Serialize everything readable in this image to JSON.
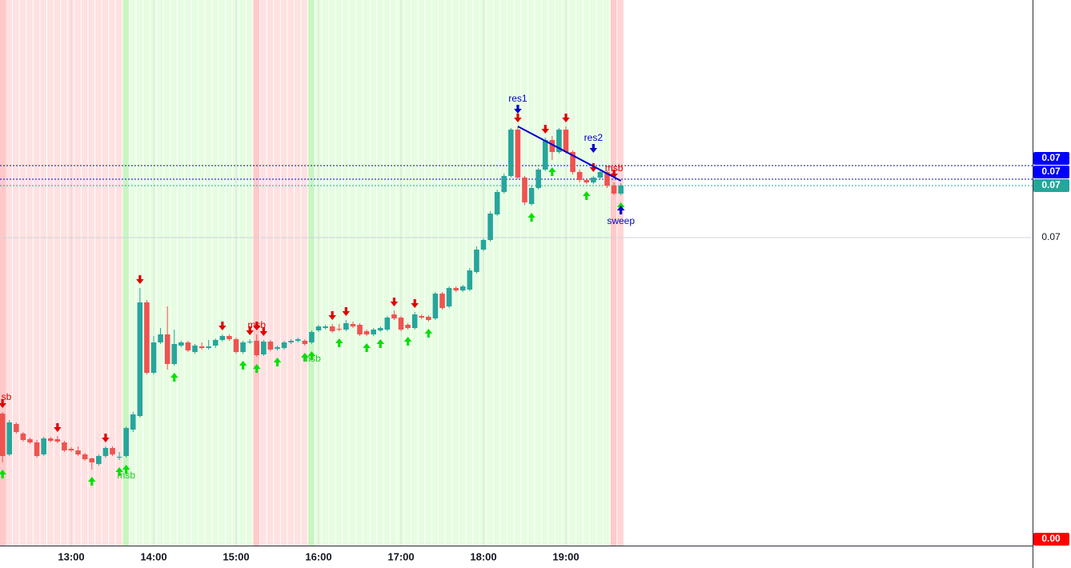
{
  "chart_data": {
    "type": "candlestick",
    "x": [
      "12:10",
      "12:15",
      "12:20",
      "12:25",
      "12:30",
      "12:35",
      "12:40",
      "12:45",
      "12:50",
      "12:55",
      "13:00",
      "13:05",
      "13:10",
      "13:15",
      "13:20",
      "13:25",
      "13:30",
      "13:35",
      "13:40",
      "13:45",
      "13:50",
      "13:55",
      "14:00",
      "14:05",
      "14:10",
      "14:15",
      "14:20",
      "14:25",
      "14:30",
      "14:35",
      "14:40",
      "14:45",
      "14:50",
      "14:55",
      "15:00",
      "15:05",
      "15:10",
      "15:15",
      "15:20",
      "15:25",
      "15:30",
      "15:35",
      "15:40",
      "15:45",
      "15:50",
      "15:55",
      "16:00",
      "16:05",
      "16:10",
      "16:15",
      "16:20",
      "16:25",
      "16:30",
      "16:35",
      "16:40",
      "16:45",
      "16:50",
      "16:55",
      "17:00",
      "17:05",
      "17:10",
      "17:15",
      "17:20",
      "17:25",
      "17:30",
      "17:35",
      "17:40",
      "17:45",
      "17:50",
      "17:55",
      "18:00",
      "18:05",
      "18:10",
      "18:15",
      "18:20",
      "18:25",
      "18:30",
      "18:35",
      "18:40",
      "18:45",
      "18:50",
      "18:55",
      "19:00",
      "19:05",
      "19:10",
      "19:15",
      "19:20",
      "19:25",
      "19:30",
      "19:35",
      "19:40"
    ],
    "open": [
      0.0678,
      0.06729,
      0.06767,
      0.06755,
      0.06748,
      0.06744,
      0.06729,
      0.06749,
      0.06748,
      0.06744,
      0.06736,
      0.06734,
      0.06729,
      0.06724,
      0.06717,
      0.06727,
      0.06737,
      0.06725,
      0.06727,
      0.0676,
      0.06777,
      0.06919,
      0.06831,
      0.06869,
      0.06879,
      0.06842,
      0.06865,
      0.06869,
      0.06857,
      0.06864,
      0.06862,
      0.06865,
      0.06872,
      0.06877,
      0.06873,
      0.06857,
      0.06869,
      0.06871,
      0.06854,
      0.0687,
      0.06861,
      0.06862,
      0.06869,
      0.06871,
      0.06871,
      0.06869,
      0.06884,
      0.06887,
      0.06889,
      0.06886,
      0.06885,
      0.06892,
      0.06891,
      0.06883,
      0.06879,
      0.06884,
      0.06885,
      0.06904,
      0.069,
      0.06891,
      0.06887,
      0.06902,
      0.06901,
      0.06899,
      0.0693,
      0.06914,
      0.06937,
      0.06934,
      0.06935,
      0.06957,
      0.06985,
      0.06997,
      0.07029,
      0.07057,
      0.07077,
      0.07135,
      0.07075,
      0.07042,
      0.07062,
      0.07085,
      0.07122,
      0.07107,
      0.07135,
      0.07107,
      0.07082,
      0.07072,
      0.07069,
      0.07075,
      0.07082,
      0.07065,
      0.07055
    ],
    "high": [
      0.06782,
      0.06772,
      0.06769,
      0.06757,
      0.0675,
      0.06747,
      0.06751,
      0.06751,
      0.06752,
      0.06746,
      0.06738,
      0.06739,
      0.06731,
      0.06725,
      0.06729,
      0.06739,
      0.06739,
      0.06732,
      0.06764,
      0.06782,
      0.06937,
      0.06922,
      0.06877,
      0.06887,
      0.06914,
      0.06885,
      0.06871,
      0.06871,
      0.06867,
      0.06869,
      0.06872,
      0.06874,
      0.06879,
      0.06879,
      0.06875,
      0.06871,
      0.06873,
      0.06879,
      0.06872,
      0.06872,
      0.06865,
      0.06871,
      0.06873,
      0.06875,
      0.06873,
      0.06884,
      0.06891,
      0.06891,
      0.06892,
      0.06892,
      0.06897,
      0.06895,
      0.06893,
      0.06885,
      0.06887,
      0.06889,
      0.06902,
      0.06909,
      0.06902,
      0.06893,
      0.06907,
      0.06904,
      0.06903,
      0.06932,
      0.06932,
      0.06939,
      0.06939,
      0.06941,
      0.06962,
      0.06989,
      0.06999,
      0.07033,
      0.0706,
      0.0708,
      0.07137,
      0.07139,
      0.07077,
      0.07065,
      0.07087,
      0.07125,
      0.07127,
      0.07137,
      0.07139,
      0.07109,
      0.07085,
      0.07074,
      0.07077,
      0.07084,
      0.07084,
      0.07069,
      0.07068
    ],
    "low": [
      0.06719,
      0.06727,
      0.06755,
      0.06745,
      0.06742,
      0.06725,
      0.06727,
      0.06744,
      0.06743,
      0.06732,
      0.06732,
      0.06727,
      0.06721,
      0.0671,
      0.06715,
      0.06725,
      0.06727,
      0.06722,
      0.06725,
      0.06757,
      0.06775,
      0.06829,
      0.06829,
      0.06867,
      0.06835,
      0.0684,
      0.06863,
      0.06857,
      0.06855,
      0.0686,
      0.0686,
      0.06862,
      0.0687,
      0.06871,
      0.06855,
      0.06855,
      0.06867,
      0.06851,
      0.06852,
      0.06858,
      0.06859,
      0.0686,
      0.06867,
      0.06869,
      0.06865,
      0.06867,
      0.06882,
      0.06885,
      0.06881,
      0.06883,
      0.06883,
      0.06887,
      0.06877,
      0.06877,
      0.06877,
      0.06882,
      0.06883,
      0.06897,
      0.06883,
      0.06885,
      0.06885,
      0.06898,
      0.06895,
      0.06897,
      0.0691,
      0.06912,
      0.06932,
      0.06932,
      0.06933,
      0.06955,
      0.06983,
      0.06995,
      0.07027,
      0.07055,
      0.07075,
      0.07073,
      0.07041,
      0.0704,
      0.0706,
      0.07083,
      0.07097,
      0.07105,
      0.07105,
      0.07079,
      0.07069,
      0.07067,
      0.07067,
      0.07073,
      0.07062,
      0.07053,
      0.07053
    ],
    "close": [
      0.06727,
      0.06769,
      0.06757,
      0.06747,
      0.06744,
      0.06727,
      0.06749,
      0.06746,
      0.06745,
      0.06734,
      0.06734,
      0.06729,
      0.06723,
      0.06719,
      0.06727,
      0.06737,
      0.06729,
      0.06726,
      0.06762,
      0.06779,
      0.06919,
      0.06831,
      0.06869,
      0.06879,
      0.06842,
      0.06867,
      0.06869,
      0.06859,
      0.06865,
      0.06862,
      0.06864,
      0.06872,
      0.06877,
      0.06873,
      0.06857,
      0.06869,
      0.0687,
      0.06853,
      0.0687,
      0.0686,
      0.06863,
      0.06869,
      0.06871,
      0.06873,
      0.06867,
      0.06882,
      0.06889,
      0.06889,
      0.06883,
      0.06885,
      0.06893,
      0.06889,
      0.06879,
      0.06879,
      0.06885,
      0.06887,
      0.069,
      0.06899,
      0.06885,
      0.06887,
      0.06904,
      0.069,
      0.06897,
      0.0693,
      0.06912,
      0.06937,
      0.06934,
      0.06939,
      0.06959,
      0.06985,
      0.06997,
      0.0703,
      0.07057,
      0.07077,
      0.07135,
      0.07075,
      0.07044,
      0.07062,
      0.07085,
      0.07122,
      0.07107,
      0.07135,
      0.07107,
      0.07082,
      0.07072,
      0.07069,
      0.07075,
      0.07082,
      0.07065,
      0.07055,
      0.07065
    ],
    "up_color": "#26a69a",
    "down_color": "#ef5350",
    "xticks": [
      "13:00",
      "14:00",
      "15:00",
      "16:00",
      "17:00",
      "18:00",
      "19:00"
    ],
    "ylim": [
      0.06615,
      0.07297
    ],
    "yticks": [
      {
        "value": 0.07,
        "label": "0.07"
      }
    ],
    "grid": true,
    "sessions": [
      {
        "start": "12:10",
        "end": "13:35",
        "color": "#ffe1e1",
        "edge_color": "#ffc9c9"
      },
      {
        "start": "13:40",
        "end": "15:10",
        "color": "#e6fde1",
        "edge_color": "#c9f5c3"
      },
      {
        "start": "15:15",
        "end": "15:50",
        "color": "#ffe1e1",
        "edge_color": "#ffc9c9"
      },
      {
        "start": "15:55",
        "end": "19:30",
        "color": "#e6fde1",
        "edge_color": "#c9f5c3"
      },
      {
        "start": "19:35",
        "end": "19:40",
        "color": "#ffd6d6",
        "edge_color": "#ffc9c9"
      }
    ],
    "signals_down": [
      "12:10",
      "12:50",
      "13:25",
      "13:50",
      "14:50",
      "15:10",
      "15:15",
      "15:20",
      "16:10",
      "16:20",
      "16:55",
      "17:10",
      "18:25",
      "18:45",
      "19:00",
      "19:20",
      "19:35"
    ],
    "signals_up": [
      "12:10",
      "13:15",
      "13:35",
      "13:40",
      "14:15",
      "15:05",
      "15:15",
      "15:30",
      "15:50",
      "15:55",
      "16:15",
      "16:35",
      "16:45",
      "17:05",
      "17:20",
      "18:35",
      "18:50",
      "19:15",
      "19:40"
    ],
    "signal_down_color": "#e00000",
    "signal_up_color": "#00e000",
    "annotations": [
      {
        "text": "sb",
        "x": "12:10",
        "y": 0.068,
        "color": "#e00000"
      },
      {
        "text": "msb",
        "x": "13:40",
        "y": 0.06702,
        "color": "#22cc22"
      },
      {
        "text": "msb",
        "x": "15:15",
        "y": 0.0689,
        "color": "#e00000"
      },
      {
        "text": "msb",
        "x": "15:55",
        "y": 0.06848,
        "color": "#22cc22"
      },
      {
        "text": "msb",
        "x": "19:35",
        "y": 0.07086,
        "color": "#e00000"
      },
      {
        "text": "res1",
        "x": "18:25",
        "y": 0.07173,
        "color": "#0000cc",
        "arrow": "down"
      },
      {
        "text": "res2",
        "x": "19:20",
        "y": 0.07124,
        "color": "#0000cc",
        "arrow": "down"
      },
      {
        "text": "sweep",
        "x": "19:40",
        "y": 0.0702,
        "color": "#0000cc",
        "arrow": "up"
      }
    ],
    "trendline": {
      "x": [
        "18:25",
        "19:40"
      ],
      "y": [
        0.07139,
        0.07071
      ],
      "color": "#0000cc"
    },
    "price_labels": [
      {
        "value": 0.0709,
        "label": "0.07",
        "color": "#0000ff"
      },
      {
        "value": 0.07073,
        "label": "0.07",
        "color": "#0000ff"
      },
      {
        "value": 0.07065,
        "label": "0.07",
        "color": "#26a69a"
      }
    ],
    "indicator_label": {
      "value": 0,
      "label": "0.00",
      "color": "#ff0000"
    }
  }
}
